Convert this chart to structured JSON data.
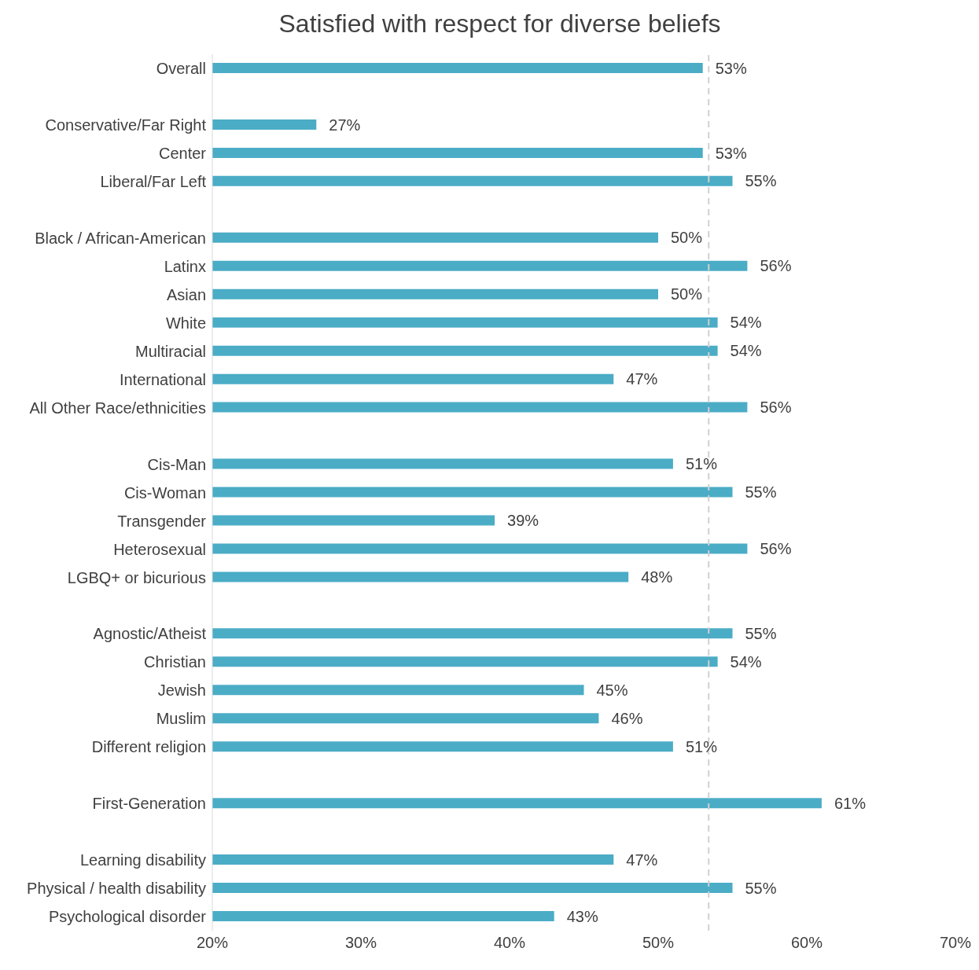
{
  "chart_data": {
    "type": "bar",
    "orientation": "horizontal",
    "title": "Satisfied with respect for diverse beliefs",
    "categories": [
      "Overall",
      null,
      "Conservative/Far Right",
      "Center",
      "Liberal/Far Left",
      null,
      "Black / African-American",
      "Latinx",
      "Asian",
      "White",
      "Multiracial",
      "International",
      "All Other Race/ethnicities",
      null,
      "Cis-Man",
      "Cis-Woman",
      "Transgender",
      "Heterosexual",
      "LGBQ+ or bicurious",
      null,
      "Agnostic/Atheist",
      "Christian",
      "Jewish",
      "Muslim",
      "Different religion",
      null,
      "First-Generation",
      null,
      "Learning disability",
      "Physical / health disability",
      "Psychological disorder"
    ],
    "values": [
      53,
      null,
      27,
      53,
      55,
      null,
      50,
      56,
      50,
      54,
      54,
      47,
      56,
      null,
      51,
      55,
      39,
      56,
      48,
      null,
      55,
      54,
      45,
      46,
      51,
      null,
      61,
      null,
      47,
      55,
      43
    ],
    "value_labels": [
      "53%",
      null,
      "27%",
      "53%",
      "55%",
      null,
      "50%",
      "56%",
      "50%",
      "54%",
      "54%",
      "47%",
      "56%",
      null,
      "51%",
      "55%",
      "39%",
      "56%",
      "48%",
      null,
      "55%",
      "54%",
      "45%",
      "46%",
      "51%",
      null,
      "61%",
      null,
      "47%",
      "55%",
      "43%"
    ],
    "color": "#4bacc6",
    "xlim": [
      20,
      70
    ],
    "xticks": [
      {
        "value": 20,
        "label": "20%"
      },
      {
        "value": 30,
        "label": "30%"
      },
      {
        "value": 40,
        "label": "40%"
      },
      {
        "value": 50,
        "label": "50%"
      },
      {
        "value": 60,
        "label": "60%"
      },
      {
        "value": 70,
        "label": "70%"
      }
    ],
    "ref_lines": [
      {
        "axis": "x",
        "value": 53.4,
        "label": null,
        "color": "#d0d0d0",
        "line_style": "dashed"
      }
    ]
  }
}
